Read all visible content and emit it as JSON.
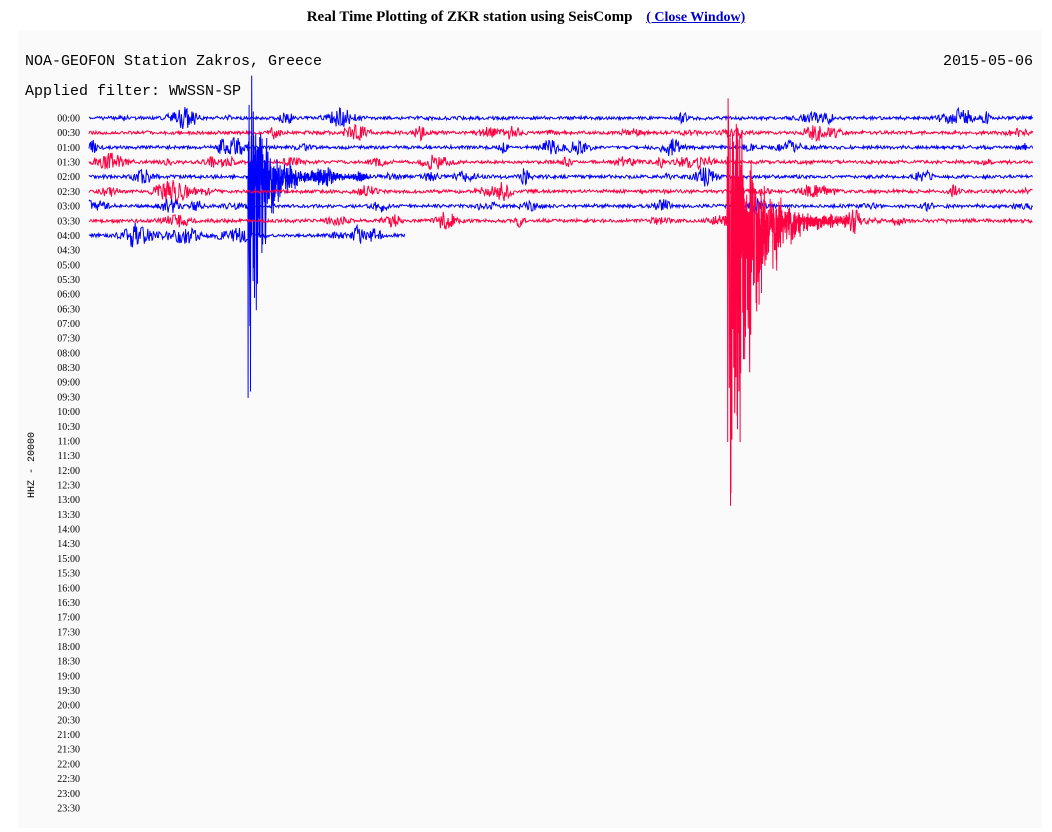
{
  "header": {
    "title": "Real Time Plotting of ZKR station using SeisComp",
    "link": "( Close Window)"
  },
  "plot": {
    "station": "NOA-GEOFON Station Zakros, Greece",
    "date": "2015-05-06",
    "filter": "Applied filter: WWSSN-SP",
    "channel": "HHZ - 20000",
    "times": [
      "00:00",
      "00:30",
      "01:00",
      "01:30",
      "02:00",
      "02:30",
      "03:00",
      "03:30",
      "04:00",
      "04:30",
      "05:00",
      "05:30",
      "06:00",
      "06:30",
      "07:00",
      "07:30",
      "08:00",
      "08:30",
      "09:00",
      "09:30",
      "10:00",
      "10:30",
      "11:00",
      "11:30",
      "12:00",
      "12:30",
      "13:00",
      "13:30",
      "14:00",
      "14:30",
      "15:00",
      "15:30",
      "16:00",
      "16:30",
      "17:00",
      "17:30",
      "18:00",
      "18:30",
      "19:00",
      "19:30",
      "20:00",
      "20:30",
      "21:00",
      "21:30",
      "22:00",
      "22:30",
      "23:00",
      "23:30"
    ]
  }
}
